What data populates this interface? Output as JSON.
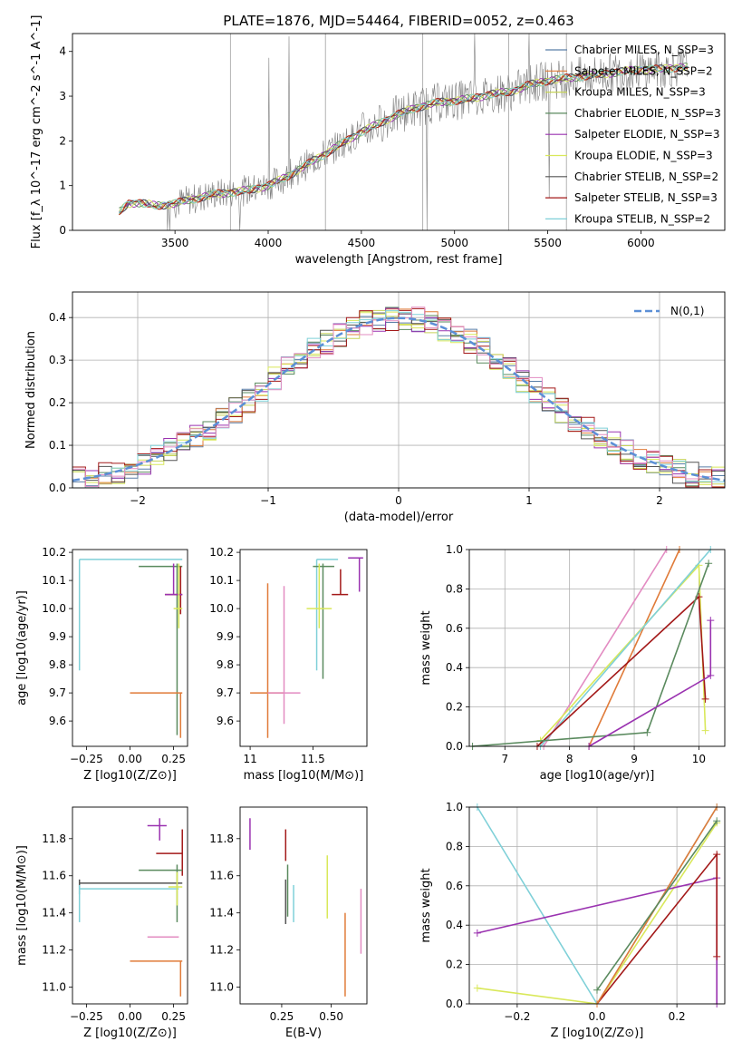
{
  "figure_title": "PLATE=1876, MJD=54464, FIBERID=0052, z=0.463",
  "series_colors": {
    "Chabrier MILES": "#5b7fa8",
    "Salpeter MILES": "#e07b39",
    "Kroupa MILES": "#c6d45a",
    "Chabrier ELODIE": "#5a8a5e",
    "Salpeter ELODIE": "#9a32b0",
    "Kroupa ELODIE": "#d9e85a",
    "Chabrier STELIB": "#555555",
    "Salpeter STELIB": "#a31919",
    "Kroupa STELIB": "#7fd0d8",
    "pink": "#e38cc2",
    "data": "#808080",
    "gauss": "#5b8fd6"
  },
  "chart_data": [
    {
      "id": "spectrum",
      "type": "line",
      "title": "",
      "xlabel": "wavelength [Angstrom, rest frame]",
      "ylabel": "Flux [f_λ 10^-17 erg cm^-2 s^-1 A^-1]",
      "xlim": [
        2950,
        6450
      ],
      "ylim": [
        0,
        4.4
      ],
      "xticks": [
        3500,
        4000,
        4500,
        5000,
        5500,
        6000
      ],
      "yticks": [
        0,
        1,
        2,
        3,
        4
      ],
      "legend_position": "top-right",
      "continuum_x": [
        3200,
        3250,
        3300,
        3400,
        3500,
        3600,
        3700,
        3800,
        3900,
        4000,
        4100,
        4200,
        4300,
        4400,
        4500,
        4600,
        4700,
        4800,
        4900,
        5000,
        5100,
        5200,
        5300,
        5400,
        5500,
        5600,
        5700,
        5800,
        5900,
        6000,
        6100,
        6200
      ],
      "continuum_y": [
        0.4,
        0.6,
        0.62,
        0.55,
        0.6,
        0.7,
        0.8,
        0.85,
        0.9,
        1.0,
        1.2,
        1.45,
        1.7,
        1.95,
        2.2,
        2.4,
        2.6,
        2.75,
        2.85,
        2.9,
        2.95,
        3.05,
        3.1,
        3.25,
        3.35,
        3.4,
        3.45,
        3.5,
        3.55,
        3.6,
        3.6,
        3.65
      ],
      "series": [
        {
          "name": "Chabrier MILES",
          "nssp": "3"
        },
        {
          "name": "Salpeter MILES",
          "nssp": "2"
        },
        {
          "name": "Kroupa MILES",
          "nssp": "3"
        },
        {
          "name": "Chabrier ELODIE",
          "nssp": "3"
        },
        {
          "name": "Salpeter ELODIE",
          "nssp": "3"
        },
        {
          "name": "Kroupa ELODIE",
          "nssp": "3"
        },
        {
          "name": "Chabrier STELIB",
          "nssp": "2"
        },
        {
          "name": "Salpeter STELIB",
          "nssp": "3"
        },
        {
          "name": "Kroupa STELIB",
          "nssp": "2"
        }
      ]
    },
    {
      "id": "residuals",
      "type": "line",
      "xlabel": "(data-model)/error",
      "ylabel": "Normed distribution",
      "xlim": [
        -2.5,
        2.5
      ],
      "ylim": [
        0,
        0.46
      ],
      "xticks": [
        -2,
        -1,
        0,
        1,
        2
      ],
      "yticks": [
        0.0,
        0.1,
        0.2,
        0.3,
        0.4
      ],
      "legend_label": "N(0,1)",
      "grid": true
    },
    {
      "id": "age_vs_Z",
      "type": "scatter",
      "xlabel": "Z [log10(Z/Z⊙)]",
      "ylabel": "age [log10(age/yr)]",
      "xlim": [
        -0.33,
        0.33
      ],
      "ylim": [
        9.51,
        10.21
      ],
      "xticks": [
        -0.25,
        0.0,
        0.25
      ],
      "xtick_labels": [
        "−0.25",
        "0.00",
        "0.25"
      ],
      "yticks": [
        9.6,
        9.7,
        9.8,
        9.9,
        10.0,
        10.1,
        10.2
      ],
      "points": [
        {
          "s": "Kroupa STELIB",
          "x": -0.29,
          "y": 10.175,
          "xe": [
            -0.29,
            0.3
          ],
          "ye": [
            9.78,
            10.175
          ]
        },
        {
          "s": "Chabrier ELODIE",
          "x": 0.27,
          "y": 10.15,
          "xe": [
            0.05,
            0.3
          ],
          "ye": [
            9.55,
            10.16
          ]
        },
        {
          "s": "Salpeter MILES",
          "x": 0.29,
          "y": 9.7,
          "xe": [
            0.0,
            0.3
          ],
          "ye": [
            9.54,
            9.7
          ]
        },
        {
          "s": "Salpeter STELIB",
          "x": 0.29,
          "y": 10.05,
          "xe": [
            0.2,
            0.3
          ],
          "ye": [
            9.98,
            10.15
          ]
        },
        {
          "s": "Salpeter ELODIE",
          "x": 0.25,
          "y": 10.05,
          "xe": [
            0.2,
            0.3
          ],
          "ye": [
            10.05,
            10.16
          ]
        },
        {
          "s": "Kroupa ELODIE",
          "x": 0.28,
          "y": 10.0,
          "xe": [
            0.25,
            0.3
          ],
          "ye": [
            9.93,
            10.16
          ]
        }
      ]
    },
    {
      "id": "age_vs_mass",
      "type": "scatter",
      "xlabel": "mass [log10(M/M⊙)]",
      "ylabel": "",
      "xlim": [
        10.92,
        11.93
      ],
      "ylim": [
        9.51,
        10.21
      ],
      "xticks": [
        11.0,
        11.5
      ],
      "yticks": [
        9.6,
        9.7,
        9.8,
        9.9,
        10.0,
        10.1,
        10.2
      ],
      "points": [
        {
          "s": "Kroupa STELIB",
          "x": 11.53,
          "y": 10.175,
          "xe": [
            11.53,
            11.7
          ],
          "ye": [
            9.78,
            10.175
          ]
        },
        {
          "s": "Chabrier ELODIE",
          "x": 11.58,
          "y": 10.15,
          "xe": [
            11.5,
            11.67
          ],
          "ye": [
            9.75,
            10.16
          ]
        },
        {
          "s": "Salpeter MILES",
          "x": 11.14,
          "y": 9.7,
          "xe": [
            11.0,
            11.27
          ],
          "ye": [
            9.54,
            10.09
          ]
        },
        {
          "s": "Pink",
          "x": 11.27,
          "y": 9.7,
          "xe": [
            11.14,
            11.4
          ],
          "ye": [
            9.59,
            10.08
          ]
        },
        {
          "s": "Salpeter STELIB",
          "x": 11.72,
          "y": 10.05,
          "xe": [
            11.65,
            11.78
          ],
          "ye": [
            10.05,
            10.14
          ]
        },
        {
          "s": "Salpeter ELODIE",
          "x": 11.87,
          "y": 10.18,
          "xe": [
            11.78,
            11.9
          ],
          "ye": [
            10.06,
            10.18
          ]
        },
        {
          "s": "Kroupa ELODIE",
          "x": 11.55,
          "y": 10.0,
          "xe": [
            11.45,
            11.65
          ],
          "ye": [
            9.93,
            10.16
          ]
        }
      ]
    },
    {
      "id": "mass_weight_vs_age",
      "type": "line",
      "xlabel": "age [log10(age/yr)]",
      "ylabel": "mass weight",
      "xlim": [
        6.45,
        10.4
      ],
      "ylim": [
        0,
        1
      ],
      "xticks": [
        7,
        8,
        9,
        10
      ],
      "yticks": [
        0.0,
        0.2,
        0.4,
        0.6,
        0.8,
        1.0
      ],
      "grid": true,
      "lines": [
        {
          "s": "pink",
          "x": [
            7.6,
            9.5
          ],
          "y": [
            0.0,
            1.0
          ]
        },
        {
          "s": "Salpeter MILES",
          "x": [
            8.3,
            9.7
          ],
          "y": [
            0.0,
            1.0
          ]
        },
        {
          "s": "Kroupa ELODIE",
          "x": [
            7.55,
            10.0,
            10.1
          ],
          "y": [
            0.03,
            0.92,
            0.08
          ]
        },
        {
          "s": "Kroupa STELIB",
          "x": [
            7.55,
            10.18
          ],
          "y": [
            0.0,
            1.0
          ]
        },
        {
          "s": "Salpeter STELIB",
          "x": [
            7.5,
            10.0,
            10.1
          ],
          "y": [
            0.0,
            0.76,
            0.24
          ]
        },
        {
          "s": "Chabrier ELODIE",
          "x": [
            6.5,
            9.2,
            10.15
          ],
          "y": [
            0.0,
            0.07,
            0.93
          ]
        },
        {
          "s": "Salpeter ELODIE",
          "x": [
            8.3,
            10.18,
            10.18
          ],
          "y": [
            0.0,
            0.36,
            0.64
          ]
        }
      ]
    },
    {
      "id": "mass_vs_Z",
      "type": "scatter",
      "xlabel": "Z [log10(Z/Z⊙)]",
      "ylabel": "mass [log10(M/M⊙)]",
      "xlim": [
        -0.33,
        0.33
      ],
      "ylim": [
        10.91,
        11.97
      ],
      "xticks": [
        -0.25,
        0.0,
        0.25
      ],
      "xtick_labels": [
        "−0.25",
        "0.00",
        "0.25"
      ],
      "yticks": [
        11.0,
        11.2,
        11.4,
        11.6,
        11.8
      ],
      "points": [
        {
          "s": "Salpeter ELODIE",
          "x": 0.17,
          "y": 11.87,
          "xe": [
            0.1,
            0.21
          ],
          "ye": [
            11.79,
            11.91
          ]
        },
        {
          "s": "Salpeter STELIB",
          "x": 0.3,
          "y": 11.72,
          "xe": [
            0.15,
            0.3
          ],
          "ye": [
            11.6,
            11.85
          ]
        },
        {
          "s": "Chabrier ELODIE",
          "x": 0.27,
          "y": 11.63,
          "xe": [
            0.05,
            0.3
          ],
          "ye": [
            11.35,
            11.66
          ]
        },
        {
          "s": "Chabrier STELIB",
          "x": -0.29,
          "y": 11.56,
          "xe": [
            -0.29,
            0.3
          ],
          "ye": [
            11.5,
            11.58
          ]
        },
        {
          "s": "Kroupa STELIB",
          "x": -0.29,
          "y": 11.53,
          "xe": [
            -0.29,
            0.28
          ],
          "ye": [
            11.35,
            11.55
          ]
        },
        {
          "s": "Kroupa ELODIE",
          "x": 0.27,
          "y": 11.54,
          "xe": [
            0.22,
            0.3
          ],
          "ye": [
            11.44,
            11.62
          ]
        },
        {
          "s": "pink",
          "x": 0.2,
          "y": 11.27,
          "xe": [
            0.1,
            0.28
          ],
          "ye": [
            11.27,
            11.27
          ]
        },
        {
          "s": "Salpeter MILES",
          "x": 0.29,
          "y": 11.14,
          "xe": [
            0.0,
            0.3
          ],
          "ye": [
            10.95,
            11.14
          ]
        }
      ]
    },
    {
      "id": "mass_vs_ebv",
      "type": "scatter",
      "xlabel": "E(B-V)",
      "ylabel": "",
      "xlim": [
        0.04,
        0.68
      ],
      "ylim": [
        10.91,
        11.97
      ],
      "xticks": [
        0.25,
        0.5
      ],
      "xtick_labels": [
        "0.25",
        "0.50"
      ],
      "yticks": [
        11.0,
        11.2,
        11.4,
        11.6,
        11.8
      ],
      "points": [
        {
          "s": "Salpeter ELODIE",
          "x": 0.09,
          "ye": [
            11.74,
            11.91
          ]
        },
        {
          "s": "Salpeter STELIB",
          "x": 0.27,
          "ye": [
            11.68,
            11.85
          ]
        },
        {
          "s": "Chabrier ELODIE",
          "x": 0.28,
          "ye": [
            11.38,
            11.66
          ]
        },
        {
          "s": "Chabrier STELIB",
          "x": 0.27,
          "ye": [
            11.34,
            11.58
          ]
        },
        {
          "s": "Kroupa STELIB",
          "x": 0.31,
          "ye": [
            11.35,
            11.55
          ]
        },
        {
          "s": "Kroupa ELODIE",
          "x": 0.48,
          "ye": [
            11.37,
            11.71
          ]
        },
        {
          "s": "Salpeter MILES",
          "x": 0.57,
          "ye": [
            10.95,
            11.4
          ]
        },
        {
          "s": "pink",
          "x": 0.65,
          "ye": [
            11.18,
            11.53
          ]
        }
      ]
    },
    {
      "id": "mass_weight_vs_Z",
      "type": "line",
      "xlabel": "Z [log10(Z/Z⊙)]",
      "ylabel": "mass weight",
      "xlim": [
        -0.32,
        0.32
      ],
      "ylim": [
        0,
        1
      ],
      "xticks": [
        -0.2,
        0.0,
        0.2
      ],
      "xtick_labels": [
        "−0.2",
        "0.0",
        "0.2"
      ],
      "yticks": [
        0.0,
        0.2,
        0.4,
        0.6,
        0.8,
        1.0
      ],
      "grid": true,
      "lines": [
        {
          "s": "Kroupa STELIB",
          "x": [
            -0.3,
            0.0,
            0.3
          ],
          "y": [
            1.0,
            0.0,
            1.0
          ]
        },
        {
          "s": "Kroupa ELODIE",
          "x": [
            -0.3,
            0.0,
            0.3
          ],
          "y": [
            0.08,
            0.0,
            0.92
          ]
        },
        {
          "s": "Salpeter ELODIE",
          "x": [
            -0.3,
            0.3,
            0.3
          ],
          "y": [
            0.36,
            0.64,
            0.0
          ]
        },
        {
          "s": "Salpeter STELIB",
          "x": [
            0.0,
            0.3,
            0.3
          ],
          "y": [
            0.0,
            0.76,
            0.24
          ]
        },
        {
          "s": "Salpeter MILES",
          "x": [
            0.0,
            0.3
          ],
          "y": [
            0.0,
            1.0
          ]
        },
        {
          "s": "Chabrier ELODIE",
          "x": [
            0.0,
            0.3
          ],
          "y": [
            0.07,
            0.93
          ]
        }
      ]
    }
  ]
}
